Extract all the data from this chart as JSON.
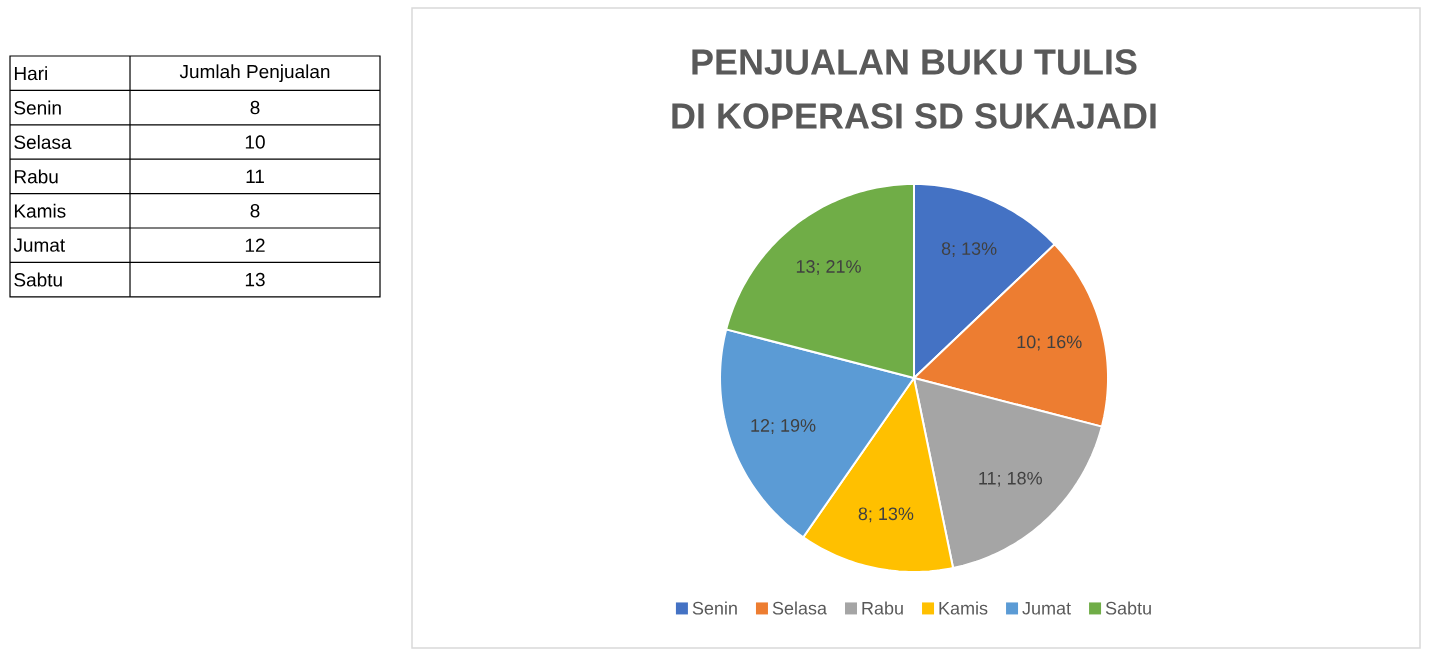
{
  "chart_data": {
    "type": "pie",
    "title": "PENJUALAN BUKU TULIS",
    "subtitle": "DI KOPERASI SD SUKAJADI",
    "categories": [
      "Senin",
      "Selasa",
      "Rabu",
      "Kamis",
      "Jumat",
      "Sabtu"
    ],
    "values": [
      8,
      10,
      11,
      8,
      12,
      13
    ],
    "colors": [
      "#4472c4",
      "#ed7d31",
      "#a5a5a5",
      "#ffc000",
      "#5b9bd5",
      "#70ad47"
    ],
    "value_labels": [
      "8; 13%",
      "10; 16%",
      "11; 18%",
      "8; 13%",
      "12; 19%",
      "13; 21%"
    ],
    "annotations": [
      "Hari",
      "Jumlah Penjualan",
      "8",
      "10",
      "11",
      "8",
      "12",
      "13"
    ],
    "legend": "bottom"
  }
}
